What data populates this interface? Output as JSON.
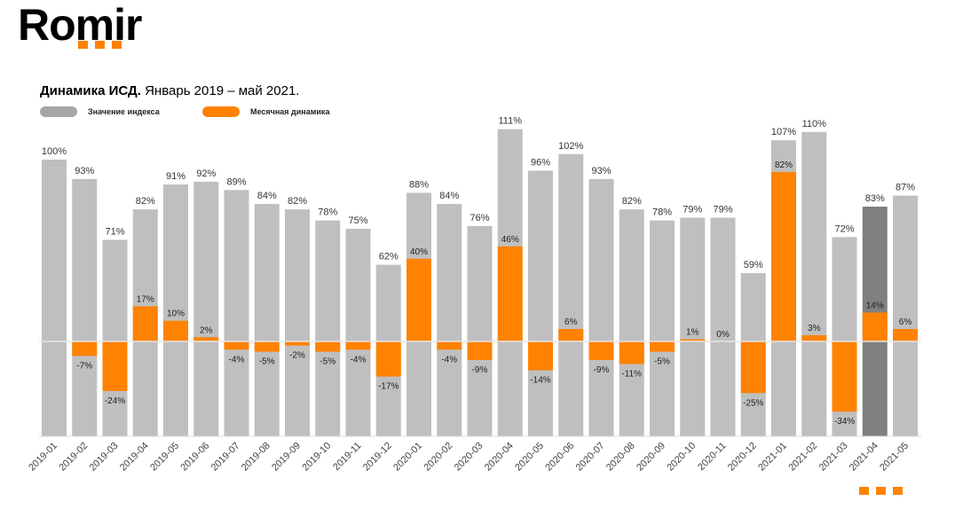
{
  "logo": {
    "text": "Romir"
  },
  "chart_data": {
    "type": "bar",
    "title_bold": "Динамика ИСД.",
    "title_rest": "Январь 2019 – май 2021.",
    "legend": [
      {
        "name": "Значение индекса",
        "color": "#a6a6a6"
      },
      {
        "name": "Месячная динамика",
        "color": "#ff8200"
      }
    ],
    "categories": [
      "2019-01",
      "2019-02",
      "2019-03",
      "2019-04",
      "2019-05",
      "2019-06",
      "2019-07",
      "2019-08",
      "2019-09",
      "2019-10",
      "2019-11",
      "2019-12",
      "2020-01",
      "2020-02",
      "2020-03",
      "2020-04",
      "2020-05",
      "2020-06",
      "2020-07",
      "2020-08",
      "2020-09",
      "2020-10",
      "2020-11",
      "2020-12",
      "2021-01",
      "2021-02",
      "2021-03",
      "2021-04",
      "2021-05"
    ],
    "series": [
      {
        "name": "Значение индекса",
        "unit": "%",
        "values": [
          100,
          93,
          71,
          82,
          91,
          92,
          89,
          84,
          82,
          78,
          75,
          62,
          88,
          84,
          76,
          111,
          96,
          102,
          93,
          82,
          78,
          79,
          79,
          59,
          107,
          110,
          72,
          83,
          87
        ]
      },
      {
        "name": "Месячная динамика",
        "unit": "%",
        "values": [
          null,
          -7,
          -24,
          17,
          10,
          2,
          -4,
          -5,
          -2,
          -5,
          -4,
          -17,
          40,
          -4,
          -9,
          46,
          -14,
          6,
          -9,
          -11,
          -5,
          1,
          0,
          -25,
          82,
          3,
          -34,
          14,
          6
        ]
      }
    ],
    "highlight_category": "2021-04",
    "colors": {
      "index": "#bfbfbf",
      "index_highlight": "#808080",
      "change": "#ff8200"
    }
  }
}
